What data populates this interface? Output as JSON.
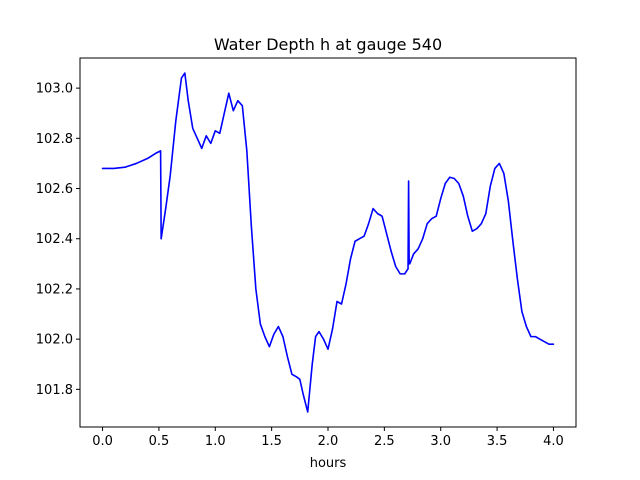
{
  "chart_data": {
    "type": "line",
    "title": "Water Depth h at gauge 540",
    "xlabel": "hours",
    "ylabel": "",
    "xlim": [
      -0.2,
      4.2
    ],
    "ylim": [
      101.65,
      103.12
    ],
    "xticks": [
      0.0,
      0.5,
      1.0,
      1.5,
      2.0,
      2.5,
      3.0,
      3.5,
      4.0
    ],
    "xtick_labels": [
      "0.0",
      "0.5",
      "1.0",
      "1.5",
      "2.0",
      "2.5",
      "3.0",
      "3.5",
      "4.0"
    ],
    "yticks": [
      101.8,
      102.0,
      102.2,
      102.4,
      102.6,
      102.8,
      103.0
    ],
    "ytick_labels": [
      "101.8",
      "102.0",
      "102.2",
      "102.4",
      "102.6",
      "102.8",
      "103.0"
    ],
    "grid": false,
    "series": [
      {
        "color": "#0000ff",
        "x": [
          0.0,
          0.1,
          0.2,
          0.3,
          0.4,
          0.47,
          0.515,
          0.52,
          0.53,
          0.56,
          0.6,
          0.65,
          0.7,
          0.73,
          0.76,
          0.8,
          0.84,
          0.88,
          0.92,
          0.96,
          1.0,
          1.04,
          1.08,
          1.12,
          1.16,
          1.2,
          1.24,
          1.28,
          1.32,
          1.36,
          1.4,
          1.44,
          1.48,
          1.52,
          1.56,
          1.6,
          1.64,
          1.68,
          1.72,
          1.75,
          1.78,
          1.82,
          1.86,
          1.89,
          1.92,
          1.96,
          2.0,
          2.04,
          2.08,
          2.12,
          2.16,
          2.2,
          2.24,
          2.28,
          2.32,
          2.36,
          2.4,
          2.44,
          2.48,
          2.52,
          2.56,
          2.6,
          2.64,
          2.68,
          2.71,
          2.715,
          2.72,
          2.725,
          2.76,
          2.8,
          2.84,
          2.88,
          2.92,
          2.96,
          3.0,
          3.04,
          3.08,
          3.12,
          3.16,
          3.2,
          3.24,
          3.28,
          3.32,
          3.36,
          3.4,
          3.44,
          3.48,
          3.52,
          3.56,
          3.6,
          3.64,
          3.68,
          3.72,
          3.76,
          3.8,
          3.84,
          3.88,
          3.92,
          3.96,
          4.0
        ],
        "y": [
          102.68,
          102.68,
          102.685,
          102.7,
          102.72,
          102.74,
          102.75,
          102.4,
          102.43,
          102.52,
          102.65,
          102.87,
          103.04,
          103.06,
          102.95,
          102.84,
          102.8,
          102.76,
          102.81,
          102.78,
          102.83,
          102.82,
          102.9,
          102.98,
          102.91,
          102.95,
          102.93,
          102.75,
          102.45,
          102.2,
          102.06,
          102.01,
          101.97,
          102.02,
          102.05,
          102.01,
          101.93,
          101.86,
          101.85,
          101.84,
          101.78,
          101.71,
          101.9,
          102.01,
          102.03,
          102.0,
          101.96,
          102.04,
          102.15,
          102.14,
          102.22,
          102.32,
          102.39,
          102.4,
          102.41,
          102.46,
          102.52,
          102.5,
          102.49,
          102.42,
          102.35,
          102.29,
          102.26,
          102.26,
          102.28,
          102.63,
          102.3,
          102.3,
          102.34,
          102.36,
          102.4,
          102.46,
          102.48,
          102.49,
          102.56,
          102.62,
          102.645,
          102.64,
          102.62,
          102.57,
          102.49,
          102.43,
          102.44,
          102.46,
          102.5,
          102.61,
          102.68,
          102.7,
          102.66,
          102.55,
          102.39,
          102.24,
          102.11,
          102.05,
          102.01,
          102.01,
          102.0,
          101.99,
          101.98,
          101.98
        ]
      }
    ]
  }
}
